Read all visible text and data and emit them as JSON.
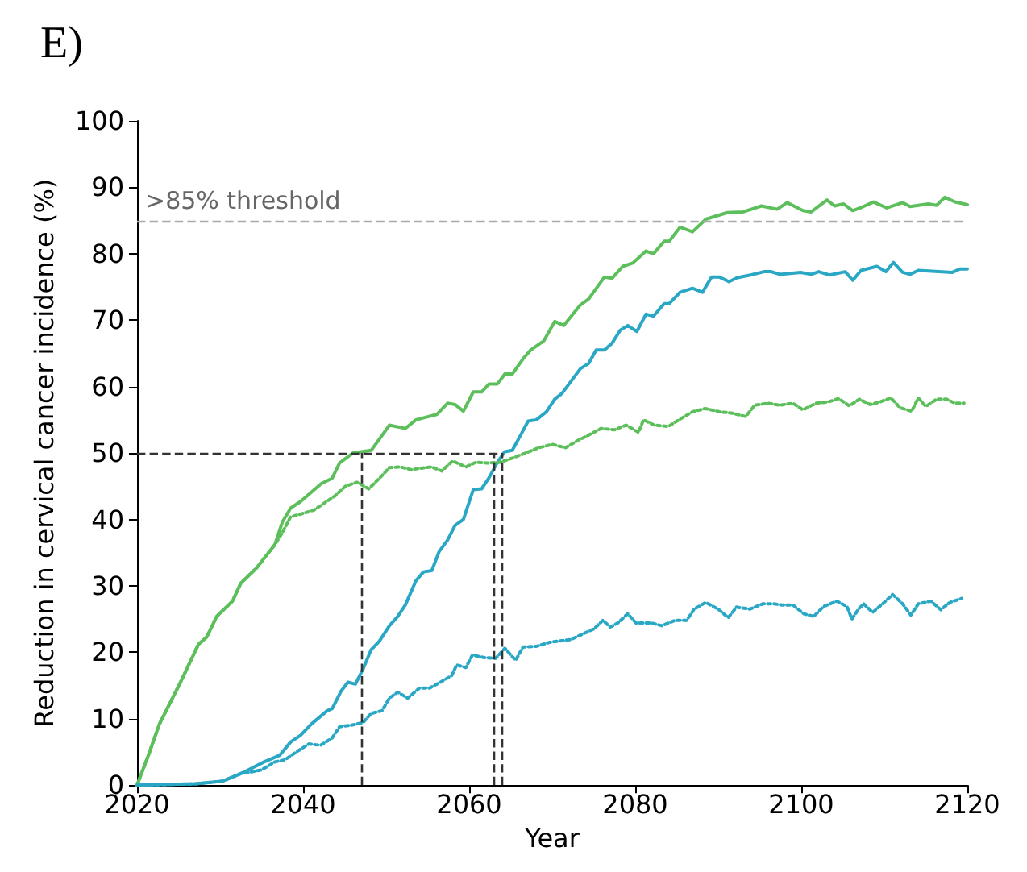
{
  "chart_data": {
    "type": "line",
    "title": "E)",
    "xlabel": "Year",
    "ylabel": "Reduction in cervical cancer incidence (%)",
    "xlim": [
      2020,
      2120
    ],
    "xticks": [
      2020,
      2040,
      2060,
      2080,
      2100,
      2120
    ],
    "ylim": [
      0,
      100
    ],
    "yticks": [
      0,
      10,
      20,
      30,
      40,
      50,
      60,
      70,
      80,
      90,
      100
    ],
    "grid": false,
    "legend": false,
    "marker": "none",
    "series": [
      {
        "color": "#5cbf5c",
        "line_style": "solid",
        "x": [
          2020,
          2021.4,
          2022.7,
          2025.2,
          2027.4,
          2028.4,
          2029.6,
          2031.5,
          2032.5,
          2034.4,
          2036.6,
          2037.5,
          2038.5,
          2039.7,
          2042.2,
          2043.5,
          2044.4,
          2046,
          2048.2,
          2050.4,
          2052.3,
          2053.6,
          2056.1,
          2057.4,
          2058.3,
          2059.3,
          2060.5,
          2061.5,
          2062.4,
          2063.4,
          2064.3,
          2065.2,
          2066.5,
          2067.4,
          2069,
          2070.3,
          2071.4,
          2073.4,
          2074.4,
          2076.3,
          2077.2,
          2078.5,
          2079.7,
          2081.3,
          2082.2,
          2083.5,
          2084.1,
          2085.4,
          2086.9,
          2088.5,
          2091.1,
          2093,
          2095.2,
          2097.1,
          2098.3,
          2100.2,
          2101.2,
          2103.1,
          2104,
          2105.1,
          2106.2,
          2107.1,
          2108.7,
          2110.3,
          2112.2,
          2113.1,
          2115.3,
          2116.3,
          2117.3,
          2118.5,
          2120
        ],
        "values": [
          0,
          4.6,
          9.2,
          15.4,
          21.2,
          22.3,
          25.4,
          27.7,
          30.4,
          32.7,
          36.2,
          39.6,
          41.7,
          42.7,
          45.4,
          46.2,
          48.5,
          50,
          50.4,
          54.2,
          53.7,
          55,
          55.8,
          57.5,
          57.3,
          56.3,
          59.2,
          59.2,
          60.4,
          60.4,
          61.9,
          61.9,
          64.2,
          65.5,
          66.9,
          69.8,
          69.2,
          72.3,
          73.2,
          76.5,
          76.3,
          78.1,
          78.6,
          80.4,
          80,
          81.9,
          81.9,
          84,
          83.3,
          85.2,
          86.2,
          86.3,
          87.2,
          86.7,
          87.7,
          86.5,
          86.3,
          88.1,
          87.2,
          87.5,
          86.5,
          86.9,
          87.8,
          86.9,
          87.7,
          87.1,
          87.5,
          87.3,
          88.5,
          87.8,
          87.4
        ]
      },
      {
        "color": "#2aa7c4",
        "line_style": "solid",
        "x": [
          2020,
          2027.1,
          2030.3,
          2032.8,
          2035.3,
          2037.2,
          2038.5,
          2039.7,
          2041,
          2042.9,
          2043.5,
          2044.6,
          2045.4,
          2046.3,
          2047.3,
          2048.2,
          2049.2,
          2050.4,
          2051.4,
          2052.3,
          2053.6,
          2054.5,
          2055.5,
          2056.4,
          2057.4,
          2058.3,
          2059.3,
          2060.5,
          2061.5,
          2062.4,
          2063.4,
          2064.3,
          2065.2,
          2066.2,
          2067.1,
          2068.1,
          2069.3,
          2070.3,
          2071.2,
          2073.4,
          2074.4,
          2075.3,
          2076.3,
          2077.2,
          2078.2,
          2079.1,
          2080.2,
          2081.3,
          2082.2,
          2083.5,
          2084.1,
          2085.4,
          2086.9,
          2088.1,
          2089.2,
          2090.1,
          2091.3,
          2092.3,
          2093.9,
          2095.5,
          2096.4,
          2097.4,
          2099.9,
          2101.2,
          2102.1,
          2103.4,
          2105.3,
          2106.2,
          2107.2,
          2109.1,
          2110.2,
          2111.1,
          2112.2,
          2113.1,
          2114.1,
          2118.2,
          2119.1,
          2120
        ],
        "values": [
          0,
          0.2,
          0.6,
          1.9,
          3.5,
          4.5,
          6.5,
          7.5,
          9.2,
          11.2,
          11.5,
          14.2,
          15.5,
          15.2,
          17.7,
          20.4,
          21.7,
          24,
          25.4,
          27.1,
          30.8,
          32.1,
          32.3,
          35.2,
          36.9,
          39.1,
          40,
          44.5,
          44.6,
          46.3,
          48.6,
          50.2,
          50.4,
          52.7,
          54.8,
          55,
          56.2,
          58.1,
          59,
          62.7,
          63.5,
          65.5,
          65.5,
          66.5,
          68.5,
          69.2,
          68.3,
          70.9,
          70.6,
          72.5,
          72.5,
          74.2,
          74.8,
          74.2,
          76.5,
          76.5,
          75.8,
          76.4,
          76.8,
          77.3,
          77.3,
          76.9,
          77.2,
          76.9,
          77.3,
          76.8,
          77.3,
          76,
          77.5,
          78.1,
          77.3,
          78.7,
          77.2,
          76.9,
          77.5,
          77.2,
          77.7,
          77.7
        ]
      },
      {
        "color": "#5cbf5c",
        "line_style": "dotted",
        "x": [
          2020,
          2021.4,
          2022.7,
          2025.2,
          2027.4,
          2028.4,
          2029.6,
          2031.5,
          2032.5,
          2034.4,
          2036.6,
          2037.5,
          2038.5,
          2039.7,
          2041.3,
          2042.6,
          2043.8,
          2045.1,
          2046.5,
          2047.9,
          2049.2,
          2050.4,
          2051.7,
          2053,
          2054.2,
          2055.5,
          2056.7,
          2058,
          2059.6,
          2060.8,
          2062.1,
          2063.7,
          2064.9,
          2066.8,
          2068.4,
          2070,
          2071.6,
          2073.1,
          2074.4,
          2075.9,
          2077.5,
          2078.9,
          2080.4,
          2081,
          2082.3,
          2084,
          2085.4,
          2086.9,
          2088.4,
          2090.2,
          2091.7,
          2093.3,
          2094.4,
          2096,
          2097.4,
          2099,
          2100.2,
          2101.8,
          2103.3,
          2104.5,
          2105.8,
          2107,
          2108.3,
          2109.5,
          2110.8,
          2111.9,
          2113.3,
          2114.1,
          2115,
          2116.3,
          2117.5,
          2118.5,
          2119.6
        ],
        "values": [
          0,
          4.6,
          9.2,
          15.4,
          21.2,
          22.3,
          25.4,
          27.7,
          30.4,
          32.7,
          36.2,
          38,
          40.4,
          40.8,
          41.4,
          42.5,
          43.5,
          45,
          45.6,
          44.6,
          46.2,
          47.8,
          47.9,
          47.5,
          47.7,
          47.9,
          47.3,
          48.8,
          47.9,
          48.6,
          48.5,
          48.6,
          49.1,
          50,
          50.8,
          51.3,
          50.8,
          51.9,
          52.7,
          53.7,
          53.5,
          54.2,
          53.1,
          55,
          54.2,
          54,
          55.1,
          56.2,
          56.7,
          56.2,
          56,
          55.5,
          57.2,
          57.5,
          57.2,
          57.5,
          56.5,
          57.5,
          57.7,
          58.2,
          57.1,
          58.1,
          57.3,
          57.7,
          58.3,
          56.8,
          56.3,
          58.3,
          57,
          58.1,
          58.1,
          57.5,
          57.5
        ]
      },
      {
        "color": "#2aa7c4",
        "line_style": "dotted",
        "x": [
          2020,
          2027.1,
          2030.3,
          2032.8,
          2033.4,
          2035,
          2036.6,
          2037.8,
          2039.2,
          2040.7,
          2042.1,
          2043.5,
          2044.4,
          2045.7,
          2047.2,
          2048.2,
          2049.5,
          2050.4,
          2051.4,
          2052.6,
          2054,
          2055.2,
          2056.4,
          2057.9,
          2058.5,
          2059.6,
          2060.4,
          2061.8,
          2063.2,
          2064.3,
          2065.6,
          2066.5,
          2068.1,
          2069.7,
          2070.9,
          2072.2,
          2073.6,
          2075,
          2076.1,
          2077,
          2077.9,
          2079.1,
          2080.1,
          2081,
          2082,
          2083.2,
          2084.8,
          2086.2,
          2087.1,
          2088.5,
          2090,
          2091.2,
          2092.2,
          2093.8,
          2095.4,
          2096.6,
          2097.8,
          2099,
          2100.3,
          2101.5,
          2102.7,
          2104.3,
          2105.5,
          2106.1,
          2106.9,
          2107.5,
          2108.6,
          2109.8,
          2111,
          2112.2,
          2113.2,
          2114.1,
          2115.6,
          2116.8,
          2117.9,
          2119.3
        ],
        "values": [
          0,
          0.2,
          0.6,
          1.9,
          1.9,
          2.3,
          3.5,
          3.8,
          5,
          6.2,
          6,
          7.1,
          8.8,
          9,
          9.4,
          10.8,
          11.2,
          13.1,
          14,
          13.1,
          14.6,
          14.6,
          15.4,
          16.5,
          18.1,
          17.7,
          19.6,
          19.2,
          19.1,
          20.6,
          18.8,
          20.8,
          20.9,
          21.5,
          21.7,
          21.9,
          22.7,
          23.5,
          24.8,
          23.8,
          24.4,
          25.8,
          24.4,
          24.4,
          24.4,
          24,
          24.8,
          24.8,
          26.5,
          27.5,
          26.5,
          25.2,
          26.8,
          26.5,
          27.3,
          27.3,
          27.1,
          27.1,
          25.8,
          25.4,
          26.9,
          27.7,
          26.9,
          25,
          26.5,
          27.3,
          26,
          27.3,
          28.7,
          27.3,
          25.6,
          27.3,
          27.7,
          26.4,
          27.5,
          28.1
        ]
      }
    ],
    "ref_lines": [
      {
        "axis": "y",
        "value": 85,
        "label": ">85% threshold",
        "color": "#aaaaaa",
        "line_style": "dashed"
      },
      {
        "axis": "y",
        "value": 50,
        "label": null,
        "color": "#333333",
        "line_style": "dashed"
      },
      {
        "axis": "x",
        "value": 2047,
        "label": null,
        "color": "#333333",
        "line_style": "dashed"
      },
      {
        "axis": "x",
        "value": 2063,
        "label": null,
        "color": "#333333",
        "line_style": "dashed"
      },
      {
        "axis": "x",
        "value": 2064,
        "label": null,
        "color": "#333333",
        "line_style": "dashed"
      }
    ]
  }
}
